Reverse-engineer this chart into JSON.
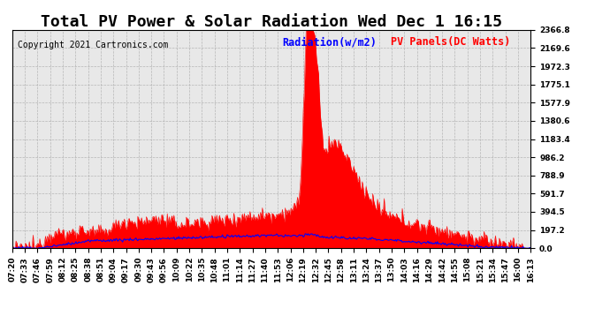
{
  "title": "Total PV Power & Solar Radiation Wed Dec 1 16:15",
  "copyright": "Copyright 2021 Cartronics.com",
  "legend_radiation": "Radiation(w/m2)",
  "legend_panels": "PV Panels(DC Watts)",
  "legend_radiation_color": "blue",
  "legend_panels_color": "red",
  "background_color": "#ffffff",
  "plot_background": "#e8e8e8",
  "grid_color": "#aaaaaa",
  "yticks": [
    0.0,
    197.2,
    394.5,
    591.7,
    788.9,
    986.2,
    1183.4,
    1380.6,
    1577.9,
    1775.1,
    1972.3,
    2169.6,
    2366.8
  ],
  "ymax": 2366.8,
  "ymin": 0.0,
  "xtick_labels": [
    "07:20",
    "07:33",
    "07:46",
    "07:59",
    "08:12",
    "08:25",
    "08:38",
    "08:51",
    "09:04",
    "09:17",
    "09:30",
    "09:43",
    "09:56",
    "10:09",
    "10:22",
    "10:35",
    "10:48",
    "11:01",
    "11:14",
    "11:27",
    "11:40",
    "11:53",
    "12:06",
    "12:19",
    "12:32",
    "12:45",
    "12:58",
    "13:11",
    "13:24",
    "13:37",
    "13:50",
    "14:03",
    "14:16",
    "14:29",
    "14:42",
    "14:55",
    "15:08",
    "15:21",
    "15:34",
    "15:47",
    "16:00",
    "16:13"
  ],
  "n_xticks": 42,
  "n_points": 546,
  "title_fontsize": 13,
  "copyright_fontsize": 7,
  "tick_fontsize": 6.5,
  "legend_fontsize": 8.5
}
